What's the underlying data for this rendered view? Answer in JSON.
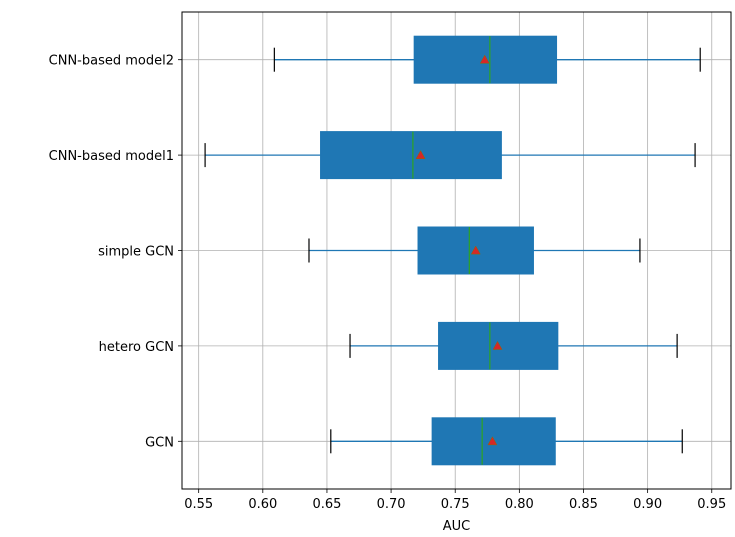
{
  "chart_data": {
    "type": "boxplot",
    "orientation": "horizontal",
    "title": "",
    "xlabel": "AUC",
    "ylabel": "",
    "xlim": [
      0.537,
      0.965
    ],
    "xticks": [
      0.55,
      0.6,
      0.65,
      0.7,
      0.75,
      0.8,
      0.85,
      0.9,
      0.95
    ],
    "xtick_labels": [
      "0.55",
      "0.60",
      "0.65",
      "0.70",
      "0.75",
      "0.80",
      "0.85",
      "0.90",
      "0.95"
    ],
    "grid": true,
    "categories": [
      "CNN-based model2",
      "CNN-based model1",
      "simple GCN",
      "hetero GCN",
      "GCN"
    ],
    "boxes": [
      {
        "label": "CNN-based model2",
        "whisker_low": 0.609,
        "q1": 0.718,
        "median": 0.777,
        "q3": 0.829,
        "whisker_high": 0.941,
        "mean": 0.773
      },
      {
        "label": "CNN-based model1",
        "whisker_low": 0.555,
        "q1": 0.645,
        "median": 0.717,
        "q3": 0.786,
        "whisker_high": 0.937,
        "mean": 0.723
      },
      {
        "label": "simple GCN",
        "whisker_low": 0.636,
        "q1": 0.721,
        "median": 0.761,
        "q3": 0.811,
        "whisker_high": 0.894,
        "mean": 0.766
      },
      {
        "label": "hetero GCN",
        "whisker_low": 0.668,
        "q1": 0.737,
        "median": 0.777,
        "q3": 0.83,
        "whisker_high": 0.923,
        "mean": 0.783
      },
      {
        "label": "GCN",
        "whisker_low": 0.653,
        "q1": 0.732,
        "median": 0.771,
        "q3": 0.828,
        "whisker_high": 0.927,
        "mean": 0.779
      }
    ],
    "colors": {
      "box_fill": "#1f77b4",
      "whisker": "#1f77b4",
      "cap": "#000000",
      "median": "#2ca02c",
      "mean_marker": "#d62728",
      "grid": "#b0b0b0"
    }
  }
}
